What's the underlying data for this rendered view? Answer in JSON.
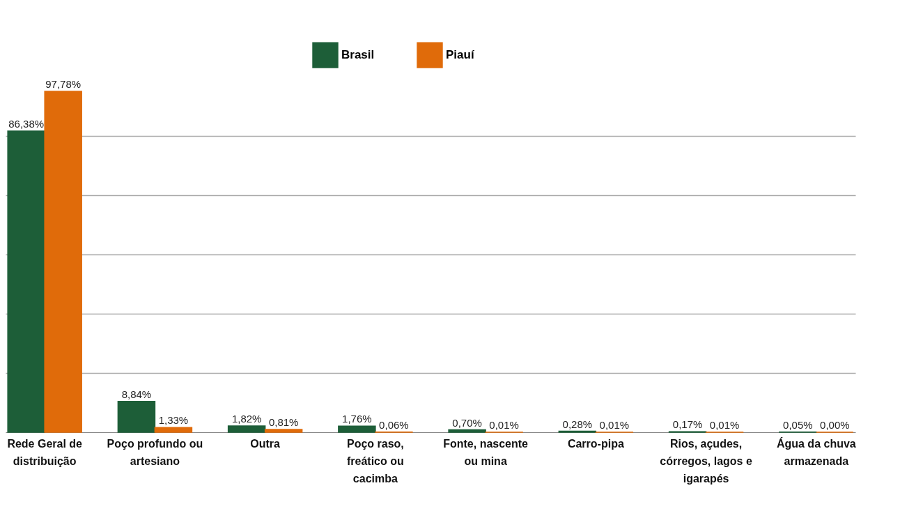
{
  "chart_data": {
    "type": "bar",
    "categories": [
      "Rede Geral de distribuição",
      "Poço profundo ou artesiano",
      "Outra",
      "Poço raso, freático ou cacimba",
      "Fonte, nascente ou mina",
      "Carro-pipa",
      "Rios, açudes, córregos, lagos e igarapés",
      "Água da chuva armazenada"
    ],
    "series": [
      {
        "name": "Brasil",
        "color": "#1d5e38",
        "values": [
          86.38,
          8.84,
          1.82,
          1.76,
          0.7,
          0.28,
          0.17,
          0.05
        ],
        "value_labels": [
          "86,38%",
          "8,84%",
          "1,82%",
          "1,76%",
          "0,70%",
          "0,28%",
          "0,17%",
          "0,05%"
        ]
      },
      {
        "name": "Piauí",
        "color": "#e06b0a",
        "values": [
          97.78,
          1.33,
          0.81,
          0.06,
          0.01,
          0.01,
          0.01,
          0.0
        ],
        "value_labels": [
          "97,78%",
          "1,33%",
          "0,81%",
          "0,06%",
          "0,01%",
          "0,01%",
          "0,01%",
          "0,00%"
        ]
      }
    ],
    "yticks": [
      {
        "value": 17,
        "label": null
      },
      {
        "value": 34,
        "label": null
      },
      {
        "value": 51,
        "label": null
      },
      {
        "value": 68,
        "label": null
      },
      {
        "value": 85,
        "label": null
      }
    ],
    "grid": "y",
    "legend": "top",
    "tick_labels": "x"
  }
}
